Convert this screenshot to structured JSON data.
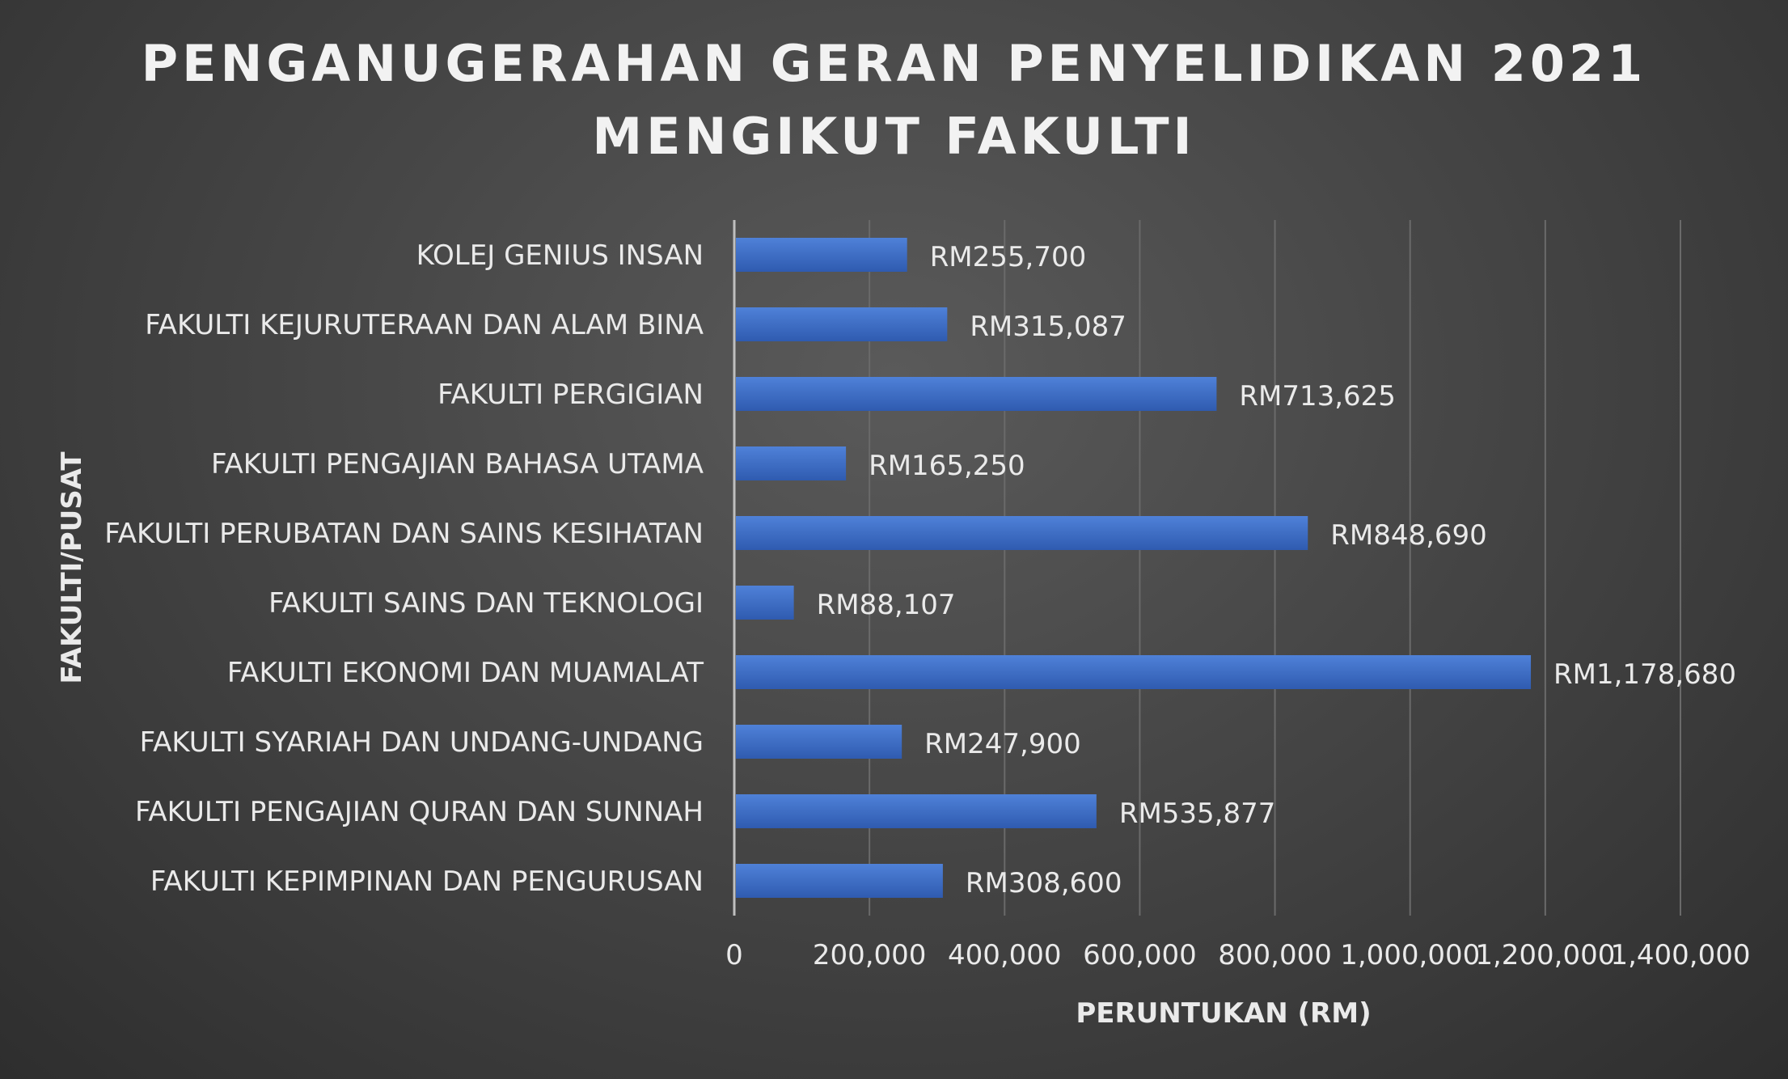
{
  "chart_data": {
    "type": "bar",
    "orientation": "horizontal",
    "title_lines": [
      "PENGANUGERAHAN GERAN PENYELIDIKAN 2021",
      "MENGIKUT FAKULTI"
    ],
    "xlabel": "PERUNTUKAN (RM)",
    "ylabel": "FAKULTI/PUSAT",
    "categories": [
      "KOLEJ GENIUS INSAN",
      "FAKULTI KEJURUTERAAN DAN ALAM BINA",
      "FAKULTI PERGIGIAN",
      "FAKULTI PENGAJIAN BAHASA UTAMA",
      "FAKULTI PERUBATAN DAN SAINS KESIHATAN",
      "FAKULTI SAINS DAN TEKNOLOGI",
      "FAKULTI EKONOMI DAN MUAMALAT",
      "FAKULTI SYARIAH DAN UNDANG-UNDANG",
      "FAKULTI PENGAJIAN QURAN DAN SUNNAH",
      "FAKULTI KEPIMPINAN DAN PENGURUSAN"
    ],
    "values": [
      255700,
      315087,
      713625,
      165250,
      848690,
      88107,
      1178680,
      247900,
      535877,
      308600
    ],
    "data_labels": [
      "RM255,700",
      "RM315,087",
      "RM713,625",
      "RM165,250",
      "RM848,690",
      "RM88,107",
      "RM1,178,680",
      "RM247,900",
      "RM535,877",
      "RM308,600"
    ],
    "xlim": [
      0,
      1400000
    ],
    "xticks": [
      0,
      200000,
      400000,
      600000,
      800000,
      1000000,
      1200000,
      1400000
    ],
    "xtick_labels": [
      "0",
      "200,000",
      "400,000",
      "600,000",
      "800,000",
      "1,000,000",
      "1,200,000",
      "1,400,000"
    ],
    "grid": true,
    "legend": "none",
    "bar_color": "#4472c4",
    "bar_color_light": "#4f81d8",
    "bar_color_dark": "#2f5bb0",
    "gridline_color": "#6a6a6a",
    "axis_line_color": "#bfbfbf"
  }
}
